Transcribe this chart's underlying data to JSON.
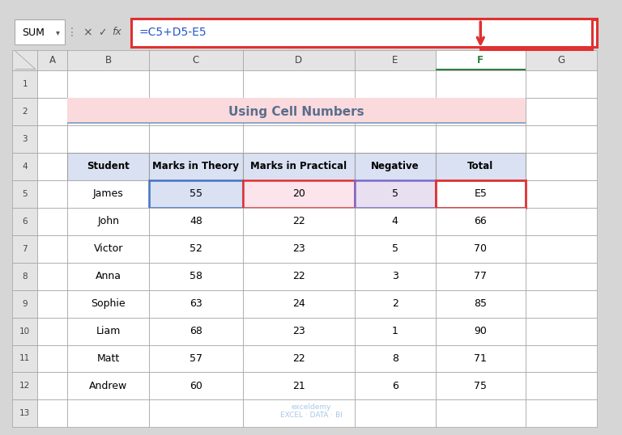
{
  "title": "Using Cell Numbers",
  "formula_bar_text": "=C5+D5-E5",
  "name_box": "SUM",
  "col_headers": [
    "A",
    "B",
    "C",
    "D",
    "E",
    "F",
    "G"
  ],
  "row_headers": [
    "1",
    "2",
    "3",
    "4",
    "5",
    "6",
    "7",
    "8",
    "9",
    "10",
    "11",
    "12",
    "13"
  ],
  "table_headers": [
    "Student",
    "Marks in Theory",
    "Marks in Practical",
    "Negative",
    "Total"
  ],
  "table_data": [
    [
      "James",
      "55",
      "20",
      "5",
      "E5"
    ],
    [
      "John",
      "48",
      "22",
      "4",
      "66"
    ],
    [
      "Victor",
      "52",
      "23",
      "5",
      "70"
    ],
    [
      "Anna",
      "58",
      "22",
      "3",
      "77"
    ],
    [
      "Sophie",
      "63",
      "24",
      "2",
      "85"
    ],
    [
      "Liam",
      "68",
      "23",
      "1",
      "90"
    ],
    [
      "Matt",
      "57",
      "22",
      "8",
      "71"
    ],
    [
      "Andrew",
      "60",
      "21",
      "6",
      "75"
    ]
  ],
  "title_bg": "#FADADD",
  "title_color": "#5A6E8C",
  "title_underline_color": "#8FA8C8",
  "grid_color": "#A0A0A0",
  "excel_bg": "#D6D6D6",
  "sheet_bg": "#FFFFFF",
  "formula_bar_border": "#E03030",
  "col_header_bg": "#E4E4E4",
  "row_header_bg": "#E4E4E4",
  "c5_bg": "#D9E1F2",
  "d5_bg": "#FCE4EC",
  "e5_bg": "#E8E0F0",
  "f_col_header_bg": "#2F8040",
  "f_col_header_bottom": "#2F8040",
  "arrow_color": "#E03030",
  "watermark_color": "#A8C8E8",
  "header_row_bg": "#D9E1F2",
  "name_box_arrow": "#666666"
}
